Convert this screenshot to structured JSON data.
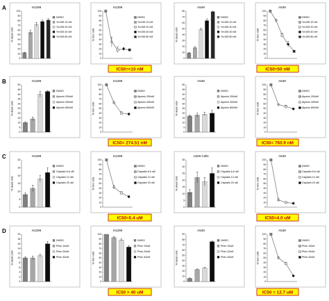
{
  "colors": {
    "dmso": "#7f7f7f",
    "c2": "#a6a6a6",
    "c3": "#d9d9d9",
    "c4": "#0d0d0d",
    "c5": "#262626",
    "line": "#7f7f7f",
    "ic50_bg": "#ffff00",
    "ic50_text": "#c00000",
    "ic50_border": "#c00000"
  },
  "panels": [
    {
      "letter": "A",
      "ic50": [
        "IC50=<10 nM",
        "IC50=50 nM"
      ],
      "charts": [
        {
          "type": "bar",
          "title": "H1299",
          "ylabel": "% dead cells",
          "ylim": [
            0,
            100
          ],
          "ticks": [
            0,
            10,
            20,
            30,
            40,
            50,
            60,
            70,
            80,
            90,
            100
          ],
          "categories": [
            "DMSO",
            "Ym155 10 nM",
            "Ym155 20 nM",
            "Ym155 40 nM",
            "Ym155 80 nM"
          ],
          "values": [
            12,
            55,
            72,
            78,
            81
          ],
          "errors": [
            1,
            5,
            4,
            3,
            3
          ],
          "colors": [
            "dmso",
            "c2",
            "c3",
            "c4",
            "c5"
          ],
          "legend": [
            "DMSO",
            "Ym155 10 nM",
            "Ym155 20 nM",
            "Ym155 40 nM",
            "Ym155 80 nM"
          ]
        },
        {
          "type": "line",
          "title": "H1299",
          "ylabel": "% live cells",
          "ylim": [
            0,
            100
          ],
          "ticks": [
            0,
            10,
            20,
            30,
            40,
            50,
            60,
            70,
            80,
            90,
            100
          ],
          "categories": [
            "DMSO",
            "Ym155 10 nM",
            "Ym155 20 nM",
            "Ym155 40 nM",
            "Ym155 80 nM"
          ],
          "values": [
            100,
            35,
            18,
            20,
            18
          ],
          "errors": [
            0,
            10,
            6,
            3,
            2
          ],
          "colors": [
            "dmso",
            "c2",
            "c3",
            "c4",
            "c5"
          ],
          "legend": [
            "DMSO",
            "Ym155 10 nM",
            "Ym155 20 nM",
            "Ym155 40 nM",
            "Ym155 80 nM"
          ]
        },
        {
          "type": "bar",
          "title": "A549",
          "ylabel": "% dead cells",
          "ylim": [
            0,
            80
          ],
          "ticks": [
            0,
            10,
            20,
            30,
            40,
            50,
            60,
            70,
            80
          ],
          "categories": [
            "DMSO",
            "Ym155 10 nM",
            "Ym155 20 nM",
            "Ym155 40 nM",
            "Ym155 80 nM"
          ],
          "values": [
            9,
            18,
            49,
            64,
            79
          ],
          "errors": [
            1,
            2,
            2,
            3,
            1
          ],
          "colors": [
            "dmso",
            "c2",
            "c3",
            "c4",
            "c5"
          ],
          "legend": [
            "DMSO",
            "Ym155 10 nM",
            "Ym155 20 nM",
            "Ym155 40 nM",
            "Ym155 80 nM"
          ]
        },
        {
          "type": "line",
          "title": "A549",
          "ylabel": "% live cells",
          "ylim": [
            0,
            100
          ],
          "ticks": [
            0,
            10,
            20,
            30,
            40,
            50,
            60,
            70,
            80,
            90,
            100
          ],
          "categories": [
            "DMSO",
            "Ym155 10 nM",
            "Ym155 20 nM",
            "Ym155 40 nM",
            "Ym155 80 nM"
          ],
          "values": [
            100,
            80,
            49,
            30,
            15
          ],
          "errors": [
            0,
            3,
            4,
            6,
            2
          ],
          "colors": [
            "dmso",
            "c2",
            "c3",
            "c4",
            "c5"
          ],
          "legend": [
            "DMSO",
            "Ym155 10 nM",
            "Ym155 20 nM",
            "Ym155 40 nM",
            "Ym155 80 nM"
          ]
        }
      ]
    },
    {
      "letter": "B",
      "ic50": [
        "IC50= 274.51 nM",
        "IC50= 760.9 nM"
      ],
      "charts": [
        {
          "type": "bar",
          "title": "H1299",
          "ylabel": "% dead cells",
          "ylim": [
            0,
            50
          ],
          "ticks": [
            0,
            5,
            10,
            15,
            20,
            25,
            30,
            35,
            40,
            45,
            50
          ],
          "categories": [
            "DMSO",
            "Alpenin 200nM",
            "Alpenin 400nM",
            "Alpenin 800nM"
          ],
          "values": [
            10,
            14,
            40,
            43
          ],
          "errors": [
            1,
            2,
            3,
            1
          ],
          "colors": [
            "dmso",
            "c2",
            "c3",
            "c4"
          ],
          "legend": [
            "DMSO",
            "Alpenin 200nM",
            "Alpenin 400nM",
            "Alpenin 800nM"
          ]
        },
        {
          "type": "line",
          "title": "H1299",
          "ylabel": "% live cells",
          "ylim": [
            0,
            100
          ],
          "ticks": [
            0,
            10,
            20,
            30,
            40,
            50,
            60,
            70,
            80,
            90,
            100
          ],
          "categories": [
            "DMSO",
            "Alpenin 200nM",
            "Alpenin 400nM",
            "Alpenin 800nM"
          ],
          "values": [
            100,
            62,
            40,
            38
          ],
          "errors": [
            0,
            3,
            3,
            2
          ],
          "colors": [
            "dmso",
            "c2",
            "c3",
            "c4"
          ],
          "legend": [
            "DMSO",
            "Alpenin 200nM",
            "Alpenin 400nM",
            "Alpenin 800nM"
          ]
        },
        {
          "type": "bar",
          "title": "A549",
          "ylabel": "% dead cells",
          "ylim": [
            0,
            50
          ],
          "ticks": [
            0,
            5,
            10,
            15,
            20,
            25,
            30,
            35,
            40,
            45,
            50
          ],
          "categories": [
            "DMSO",
            "Alpenin 200nM",
            "Alpenin 400nM",
            "Alpenin 800nM"
          ],
          "values": [
            17,
            18,
            19,
            20
          ],
          "errors": [
            1,
            2,
            2,
            3
          ],
          "colors": [
            "dmso",
            "c2",
            "c3",
            "c4"
          ],
          "legend": [
            "DMSO",
            "Alpenin 200nM",
            "Alpenin 400nM",
            "Alpenin 800nM"
          ]
        },
        {
          "type": "line",
          "title": "A549",
          "ylabel": "% live cells",
          "ylim": [
            0,
            100
          ],
          "ticks": [
            0,
            10,
            20,
            30,
            40,
            50,
            60,
            70,
            80,
            90,
            100
          ],
          "categories": [
            "DMSO",
            "Alpenin 200nM",
            "Alpenin 400nM",
            "Alpenin 800nM"
          ],
          "values": [
            100,
            58,
            54,
            49
          ],
          "errors": [
            0,
            2,
            3,
            2
          ],
          "colors": [
            "dmso",
            "c2",
            "c3",
            "c4"
          ],
          "legend": [
            "DMSO",
            "Alpenin 200nM",
            "Alpenin 400nM",
            "Alpenin 800nM"
          ]
        }
      ]
    },
    {
      "letter": "C",
      "ic50": [
        "IC50=5.4 uM",
        "IC50=4.0 uM"
      ],
      "charts": [
        {
          "type": "bar",
          "title": "H1299",
          "ylabel": "% dead cells",
          "ylim": [
            0,
            30
          ],
          "ticks": [
            0,
            5,
            10,
            15,
            20,
            25,
            30
          ],
          "categories": [
            "DMSO",
            "Cisplatin 6.6 uM",
            "Cisplatin 13 uM",
            "Cisplatin 20 uM"
          ],
          "values": [
            8,
            12,
            18,
            22
          ],
          "errors": [
            1,
            2,
            2,
            3
          ],
          "colors": [
            "dmso",
            "c2",
            "c3",
            "c4"
          ],
          "legend": [
            "DMSO",
            "Cisplatin 6.6 uM",
            "Cisplatin 13 uM",
            "Cisplatin 20 uM"
          ]
        },
        {
          "type": "line",
          "title": "H1299",
          "ylabel": "% live cells",
          "ylim": [
            0,
            100
          ],
          "ticks": [
            0,
            10,
            20,
            30,
            40,
            50,
            60,
            70,
            80,
            90,
            100
          ],
          "categories": [
            "DMSO",
            "Cisplatin 6.6 uM",
            "Cisplatin 13 uM",
            "Cisplatin 20 uM"
          ],
          "values": [
            100,
            42,
            30,
            22
          ],
          "errors": [
            0,
            4,
            3,
            2
          ],
          "colors": [
            "dmso",
            "c2",
            "c3",
            "c4"
          ],
          "legend": [
            "DMSO",
            "Cisplatin 6.6 uM",
            "Cisplatin 13 uM",
            "Cisplatin 20 uM"
          ]
        },
        {
          "type": "bar",
          "title": "A549 Cells",
          "ylabel": "% dead cells",
          "ylim": [
            0,
            35
          ],
          "ticks": [
            0,
            5,
            10,
            15,
            20,
            25,
            30,
            35
          ],
          "categories": [
            "DMSO",
            "Cisplatin 6.6 uM",
            "Cisplatin 13 uM",
            "Cisplatin 20 uM"
          ],
          "values": [
            11,
            22,
            19,
            25
          ],
          "errors": [
            2,
            4,
            3,
            4
          ],
          "colors": [
            "dmso",
            "c2",
            "c3",
            "c4"
          ],
          "legend": [
            "DMSO",
            "Cisplatin 6.6 uM",
            "Cisplatin 13 uM",
            "Cisplatin 20 uM"
          ]
        },
        {
          "type": "line",
          "title": "A549",
          "ylabel": "% live cells",
          "ylim": [
            0,
            100
          ],
          "ticks": [
            0,
            10,
            20,
            30,
            40,
            50,
            60,
            70,
            80,
            90,
            100
          ],
          "categories": [
            "DMSO",
            "Cisplatin 6.6 uM",
            "Cisplatin 13 uM",
            "Cisplatin 20 uM"
          ],
          "values": [
            100,
            15,
            10,
            8
          ],
          "errors": [
            0,
            3,
            2,
            2
          ],
          "colors": [
            "dmso",
            "c2",
            "c3",
            "c4"
          ],
          "legend": [
            "DMSO",
            "Cisplatin 6.6 uM",
            "Cisplatin 13 uM",
            "Cisplatin 20 uM"
          ]
        }
      ]
    },
    {
      "letter": "D",
      "ic50": [
        "IC50 > 40 uM",
        "IC50 = 12.7 uM"
      ],
      "charts": [
        {
          "type": "bar",
          "title": "H1299",
          "ylabel": "% dead cells",
          "ylim": [
            0,
            20
          ],
          "ticks": [
            0,
            2,
            4,
            6,
            8,
            10,
            12,
            14,
            16,
            18,
            20
          ],
          "categories": [
            "DMSO",
            "Phen 10uM",
            "Phen 20uM",
            "Phen 40uM"
          ],
          "values": [
            10,
            10,
            11,
            16
          ],
          "errors": [
            0.5,
            0.8,
            0.6,
            1
          ],
          "colors": [
            "dmso",
            "c2",
            "c3",
            "c4"
          ],
          "legend": [
            "DMSO",
            "Phen 10uM",
            "Phen 20uM",
            "Phen 40uM"
          ]
        },
        {
          "type": "bar",
          "title": "H1299",
          "ylabel": "% live cells",
          "ylim": [
            0,
            100
          ],
          "ticks": [
            0,
            10,
            20,
            30,
            40,
            50,
            60,
            70,
            80,
            90,
            100
          ],
          "categories": [
            "DMSO",
            "Phen 10uM",
            "Phen 20uM",
            "Phen 40uM"
          ],
          "values": [
            100,
            93,
            88,
            73
          ],
          "errors": [
            0,
            2,
            2,
            3
          ],
          "colors": [
            "dmso",
            "c2",
            "c3",
            "c4"
          ],
          "legend": [
            "DMSO",
            "Phen 10uM",
            "Phen 20uM",
            "Phen 40uM"
          ]
        },
        {
          "type": "bar",
          "title": "A549",
          "ylabel": "% dead cells",
          "ylim": [
            0,
            90
          ],
          "ticks": [
            0,
            10,
            20,
            30,
            40,
            50,
            60,
            70,
            80,
            90
          ],
          "categories": [
            "DMSO",
            "Phen 10uM",
            "Phen 20uM",
            "Phen 40uM"
          ],
          "values": [
            6,
            23,
            26,
            76
          ],
          "errors": [
            1,
            1,
            1,
            1
          ],
          "colors": [
            "dmso",
            "c2",
            "c3",
            "c4"
          ],
          "legend": [
            "DMSO",
            "Phen 10uM",
            "Phen 20uM",
            "Phen 40uM"
          ]
        },
        {
          "type": "line",
          "title": "A549",
          "ylabel": "% live cells",
          "ylim": [
            0,
            100
          ],
          "ticks": [
            0,
            10,
            20,
            30,
            40,
            50,
            60,
            70,
            80,
            90,
            100
          ],
          "categories": [
            "DMSO",
            "Phen 10uM",
            "Phen 20uM",
            "Phen 40uM"
          ],
          "values": [
            100,
            50,
            38,
            12
          ],
          "errors": [
            0,
            3,
            3,
            2
          ],
          "colors": [
            "dmso",
            "c2",
            "c3",
            "c4"
          ],
          "legend": [
            "DMSO",
            "Phen 10uM",
            "Phen 20uM",
            "Phen 40uM"
          ]
        }
      ]
    }
  ]
}
